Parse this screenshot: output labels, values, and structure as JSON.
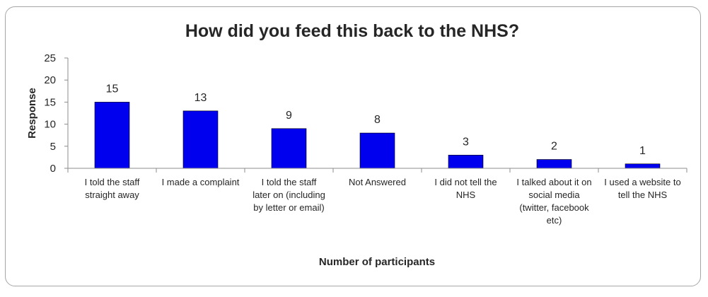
{
  "chart_data": {
    "type": "bar",
    "title": "How did you feed this back to the NHS?",
    "ylabel": "Response",
    "xlabel": "Number of participants",
    "ylim": [
      0,
      25
    ],
    "yticks": [
      0,
      5,
      10,
      15,
      20,
      25
    ],
    "grid": false,
    "legend": "none",
    "bar_color": "#0000ee",
    "categories": [
      [
        "I told the staff",
        "straight away"
      ],
      [
        "I made a complaint"
      ],
      [
        "I told the staff",
        "later on (including",
        "by letter or email)"
      ],
      [
        "Not Answered"
      ],
      [
        "I did not tell the",
        "NHS"
      ],
      [
        "I talked about it on",
        "social media",
        "(twitter, facebook",
        "etc)"
      ],
      [
        "I used a website to",
        "tell the NHS"
      ]
    ],
    "values": [
      15,
      13,
      9,
      8,
      3,
      2,
      1
    ],
    "data_labels": [
      "15",
      "13",
      "9",
      "8",
      "3",
      "2",
      "1"
    ]
  }
}
